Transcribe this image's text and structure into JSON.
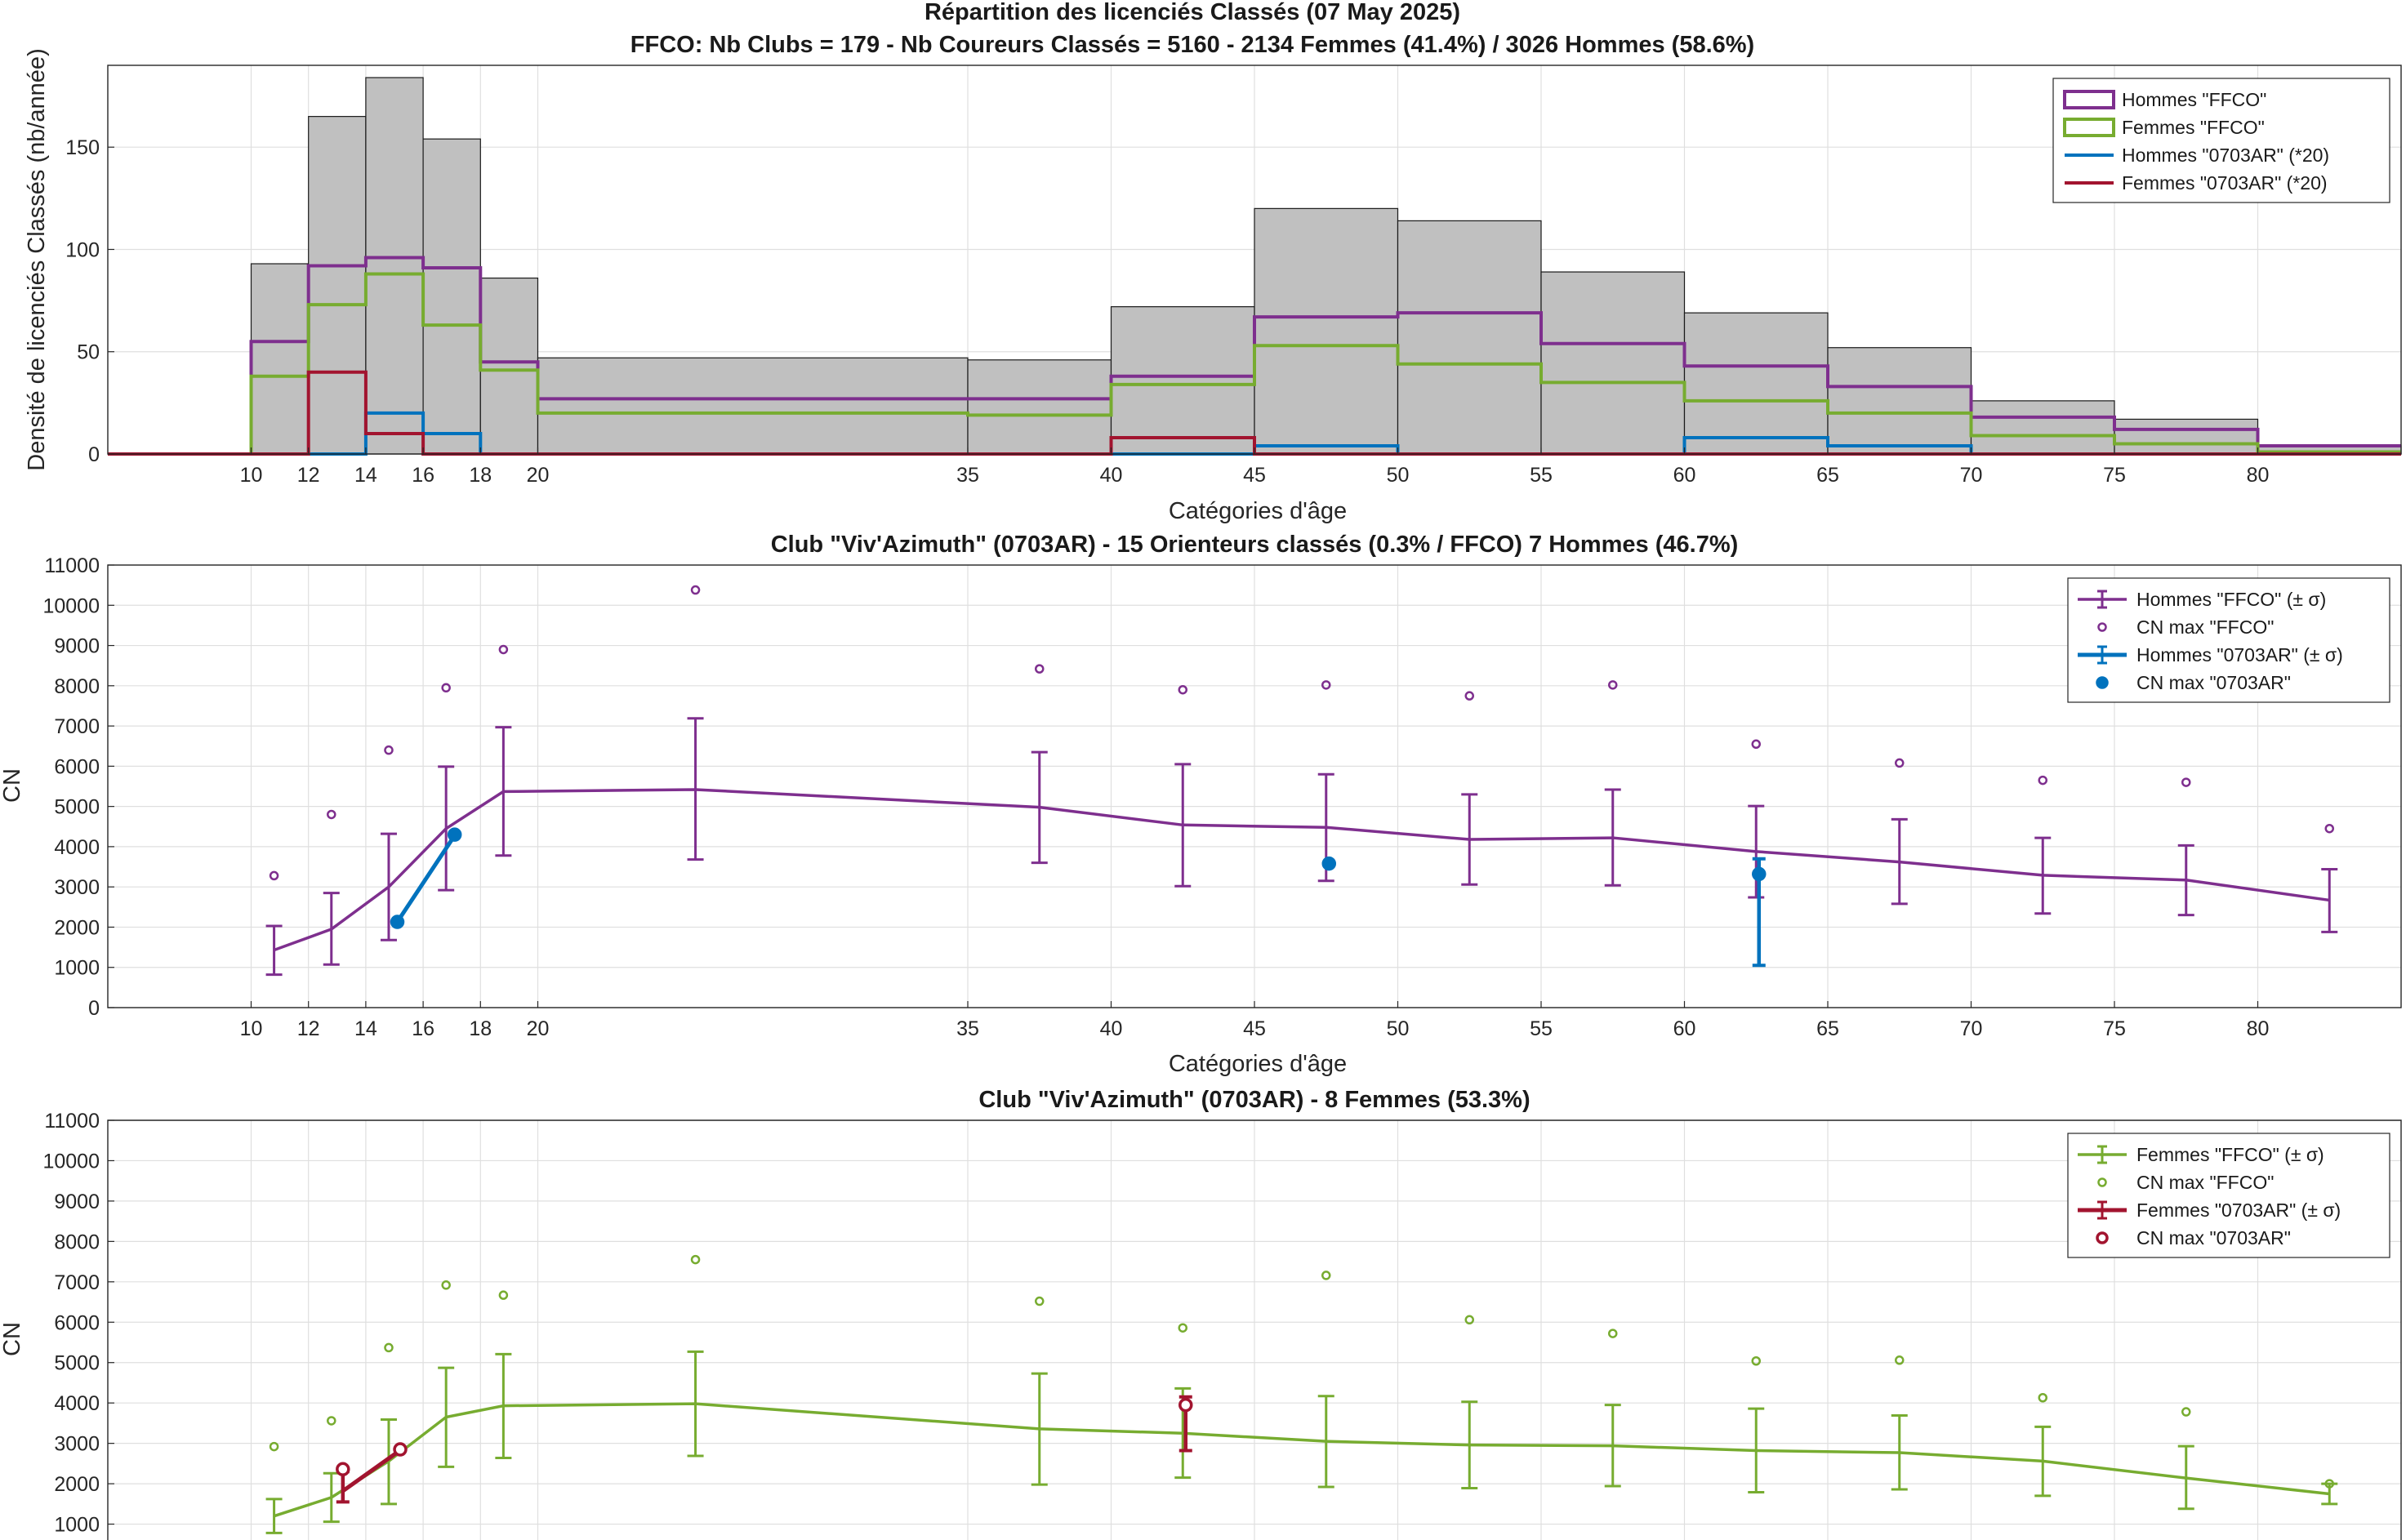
{
  "colors": {
    "hommes_ffco": "#7e2f8e",
    "femmes_ffco": "#77ac30",
    "hommes_club": "#0072bd",
    "femmes_club": "#a2142f",
    "bars": "#c0c0c0"
  },
  "chart_data": [
    {
      "type": "bar",
      "title": "Répartition des licenciés Classés (07 May 2025)",
      "subtitle": "FFCO: Nb Clubs = 179   -   Nb Coureurs Classés = 5160   -   2134 Femmes (41.4%) / 3026 Hommes (58.6%)",
      "xlabel": "Catégories d'âge",
      "ylabel": "Densité de licenciés Classés (nb/année)",
      "xlim": [
        5,
        85
      ],
      "ylim": [
        0,
        190
      ],
      "xticks": [
        10,
        12,
        14,
        16,
        18,
        20,
        35,
        40,
        45,
        50,
        55,
        60,
        65,
        70,
        75,
        80
      ],
      "yticks": [
        0,
        50,
        100,
        150
      ],
      "grid": true,
      "legend_position": "top-right",
      "bins": [
        {
          "x0": 5,
          "x1": 10,
          "total": 0
        },
        {
          "x0": 10,
          "x1": 12,
          "total": 93
        },
        {
          "x0": 12,
          "x1": 14,
          "total": 165
        },
        {
          "x0": 14,
          "x1": 16,
          "total": 184
        },
        {
          "x0": 16,
          "x1": 18,
          "total": 154
        },
        {
          "x0": 18,
          "x1": 20,
          "total": 86
        },
        {
          "x0": 20,
          "x1": 35,
          "total": 47
        },
        {
          "x0": 35,
          "x1": 40,
          "total": 46
        },
        {
          "x0": 40,
          "x1": 45,
          "total": 72
        },
        {
          "x0": 45,
          "x1": 50,
          "total": 120
        },
        {
          "x0": 50,
          "x1": 55,
          "total": 114
        },
        {
          "x0": 55,
          "x1": 60,
          "total": 89
        },
        {
          "x0": 60,
          "x1": 65,
          "total": 69
        },
        {
          "x0": 65,
          "x1": 70,
          "total": 52
        },
        {
          "x0": 70,
          "x1": 75,
          "total": 26
        },
        {
          "x0": 75,
          "x1": 80,
          "total": 17
        },
        {
          "x0": 80,
          "x1": 85,
          "total": 4
        }
      ],
      "series": [
        {
          "name": "Hommes \"FFCO\"",
          "color_key": "hommes_ffco",
          "values": [
            0,
            55,
            92,
            96,
            91,
            45,
            27,
            27,
            38,
            67,
            69,
            54,
            43,
            33,
            18,
            12,
            4
          ]
        },
        {
          "name": "Femmes \"FFCO\"",
          "color_key": "femmes_ffco",
          "values": [
            0,
            38,
            73,
            88,
            63,
            41,
            20,
            19,
            34,
            53,
            44,
            35,
            26,
            20,
            9,
            5,
            1
          ]
        },
        {
          "name": "Hommes \"0703AR\" (*20)",
          "color_key": "hommes_club",
          "values": [
            0,
            0,
            0,
            20,
            10,
            0,
            0,
            0,
            0,
            4,
            0,
            0,
            8,
            4,
            0,
            0,
            0
          ]
        },
        {
          "name": "Femmes \"0703AR\" (*20)",
          "color_key": "femmes_club",
          "values": [
            0,
            0,
            40,
            10,
            0,
            0,
            0,
            0,
            8,
            0,
            0,
            0,
            0,
            0,
            0,
            0,
            0
          ]
        }
      ]
    },
    {
      "type": "line",
      "title": "Club \"Viv'Azimuth\" (0703AR)  -  15 Orienteurs classés (0.3% / FFCO)  7 Hommes (46.7%)",
      "xlabel": "Catégories d'âge",
      "ylabel": "CN",
      "xlim": [
        5,
        85
      ],
      "ylim": [
        0,
        11000
      ],
      "xticks": [
        10,
        12,
        14,
        16,
        18,
        20,
        35,
        40,
        45,
        50,
        55,
        60,
        65,
        70,
        75,
        80
      ],
      "yticks": [
        0,
        1000,
        2000,
        3000,
        4000,
        5000,
        6000,
        7000,
        8000,
        9000,
        10000,
        11000
      ],
      "grid": true,
      "legend_position": "top-right",
      "legend": [
        "Hommes \"FFCO\" (± σ)",
        "CN max \"FFCO\"",
        "Hommes \"0703AR\" (± σ)",
        "CN max \"0703AR\""
      ],
      "ffco": {
        "x": [
          10.8,
          12.8,
          14.8,
          16.8,
          18.8,
          25.5,
          37.5,
          42.5,
          47.5,
          52.5,
          57.5,
          62.5,
          67.5,
          72.5,
          77.5,
          82.5
        ],
        "mean": [
          1430,
          1950,
          3000,
          4450,
          5370,
          5420,
          4980,
          4540,
          4480,
          4180,
          4220,
          3880,
          3620,
          3290,
          3170,
          2670
        ],
        "low": [
          820,
          1070,
          1680,
          2920,
          3780,
          3680,
          3600,
          3020,
          3150,
          3060,
          3040,
          2740,
          2580,
          2340,
          2300,
          1880
        ],
        "high": [
          2030,
          2850,
          4320,
          5990,
          6970,
          7190,
          6350,
          6050,
          5800,
          5300,
          5420,
          5010,
          4680,
          4220,
          4030,
          3440
        ],
        "cn_max": [
          3280,
          4800,
          6400,
          7950,
          8900,
          10380,
          8420,
          7900,
          8020,
          7750,
          8020,
          6550,
          6080,
          5650,
          5600,
          4450
        ]
      },
      "club": {
        "x": [
          15.1,
          17.1,
          47.6,
          62.6
        ],
        "mean": [
          2130,
          4280,
          null,
          3320
        ],
        "low": [
          null,
          null,
          null,
          1050
        ],
        "high": [
          null,
          null,
          null,
          3700
        ],
        "cn_max": [
          2130,
          4300,
          3580,
          3320
        ],
        "line_points": [
          0,
          1
        ]
      }
    },
    {
      "type": "line",
      "title": "Club \"Viv'Azimuth\" (0703AR)  -  8 Femmes (53.3%)",
      "ylabel": "CN",
      "xlim": [
        5,
        85
      ],
      "ylim": [
        0,
        11000
      ],
      "yticks": [
        1000,
        2000,
        3000,
        4000,
        5000,
        6000,
        7000,
        8000,
        9000,
        10000,
        11000
      ],
      "grid": true,
      "legend_position": "top-right",
      "legend": [
        "Femmes \"FFCO\" (± σ)",
        "CN max \"FFCO\"",
        "Femmes \"0703AR\" (± σ)",
        "CN max \"0703AR\""
      ],
      "ffco": {
        "x": [
          10.8,
          12.8,
          14.8,
          16.8,
          18.8,
          25.5,
          37.5,
          42.5,
          47.5,
          52.5,
          57.5,
          62.5,
          67.5,
          72.5,
          77.5,
          82.5
        ],
        "mean": [
          1200,
          1660,
          2560,
          3650,
          3930,
          3980,
          3360,
          3250,
          3050,
          2960,
          2940,
          2820,
          2770,
          2560,
          2140,
          1750
        ],
        "low": [
          780,
          1060,
          1500,
          2420,
          2640,
          2690,
          1980,
          2150,
          1920,
          1890,
          1940,
          1790,
          1860,
          1700,
          1380,
          1500
        ],
        "high": [
          1620,
          2260,
          3590,
          4870,
          5210,
          5270,
          4730,
          4360,
          4170,
          4030,
          3950,
          3860,
          3690,
          3410,
          2930,
          2000
        ],
        "cn_max": [
          2920,
          3560,
          5370,
          6920,
          6670,
          7550,
          6520,
          5860,
          7160,
          6060,
          5720,
          5040,
          5060,
          4130,
          3780,
          2000
        ]
      },
      "club": {
        "x": [
          13.2,
          15.2,
          42.6
        ],
        "mean": [
          1820,
          2830,
          3420
        ],
        "low": [
          1550,
          null,
          2820
        ],
        "high": [
          2300,
          null,
          4150
        ],
        "cn_max": [
          2360,
          2850,
          3950
        ],
        "line_points": [
          0,
          1
        ]
      }
    }
  ]
}
